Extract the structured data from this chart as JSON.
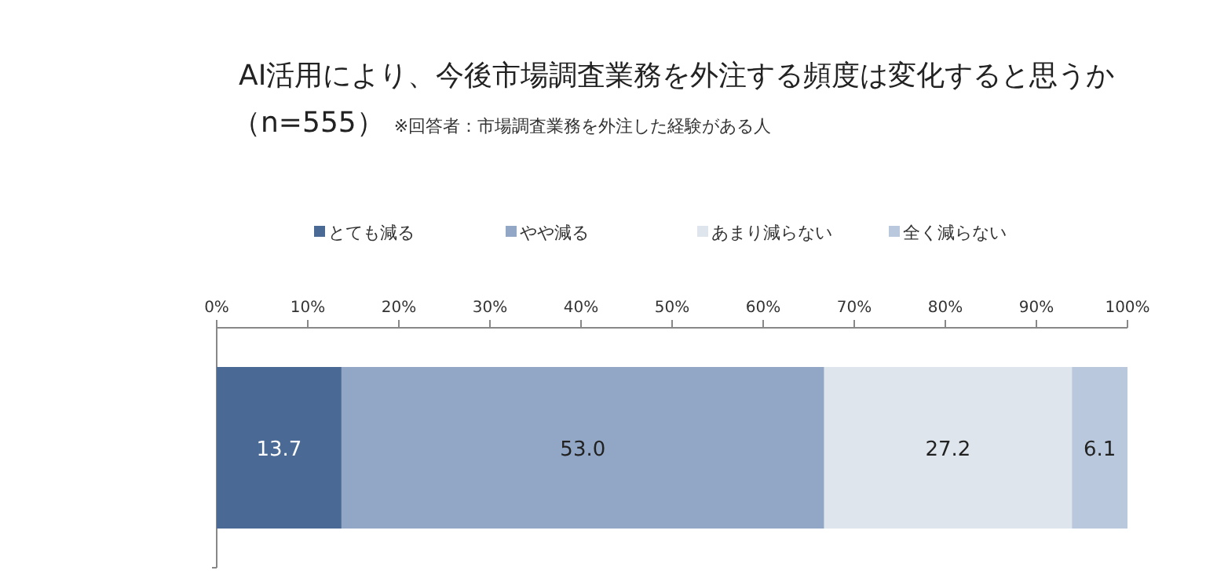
{
  "chart_data": {
    "type": "bar",
    "orientation": "horizontal",
    "stacked": true,
    "title": "AI活用により、今後市場調査業務を外注する頻度は変化すると思うか",
    "subtitle": "（n=555）",
    "annotations": [
      "※回答者：市場調査業務を外注した経験がある人"
    ],
    "categories": [
      null
    ],
    "series": [
      {
        "name": "とても減る",
        "color": "#4a6a95",
        "values": [
          13.7
        ],
        "value_labels": [
          "13.7"
        ]
      },
      {
        "name": "やや減る",
        "color": "#91a7c5",
        "values": [
          53.0
        ],
        "value_labels": [
          "53.0"
        ]
      },
      {
        "name": "あまり減らない",
        "color": "#dfe5ed",
        "values": [
          27.2
        ],
        "value_labels": [
          "27.2"
        ]
      },
      {
        "name": "全く減らない",
        "color": "#b9c8dc",
        "values": [
          6.1
        ],
        "value_labels": [
          "6.1"
        ]
      }
    ],
    "xlim": [
      0,
      100
    ],
    "xticks": [
      {
        "value": 0,
        "label": "0%"
      },
      {
        "value": 10,
        "label": "10%"
      },
      {
        "value": 20,
        "label": "20%"
      },
      {
        "value": 30,
        "label": "30%"
      },
      {
        "value": 40,
        "label": "40%"
      },
      {
        "value": 50,
        "label": "50%"
      },
      {
        "value": 60,
        "label": "60%"
      },
      {
        "value": 70,
        "label": "70%"
      },
      {
        "value": 80,
        "label": "80%"
      },
      {
        "value": 90,
        "label": "90%"
      },
      {
        "value": 100,
        "label": "100%"
      }
    ],
    "legend": "top",
    "grid": false
  }
}
